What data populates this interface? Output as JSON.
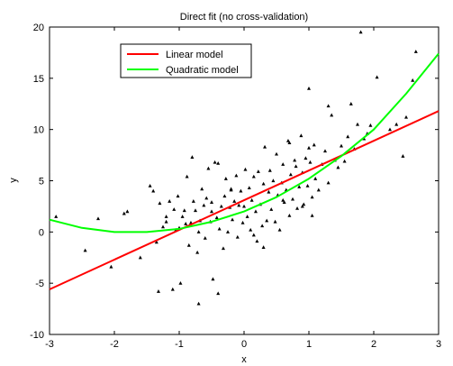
{
  "chart_data": {
    "type": "scatter",
    "title": "Direct fit (no cross-validation)",
    "xlabel": "x",
    "ylabel": "y",
    "xlim": [
      -3,
      3
    ],
    "ylim": [
      -10,
      20
    ],
    "x_ticks": [
      -3,
      -2,
      -1,
      0,
      1,
      2,
      3
    ],
    "y_ticks": [
      -10,
      -5,
      0,
      5,
      10,
      15,
      20
    ],
    "x_tick_labels": [
      "-3",
      "-2",
      "-1",
      "0",
      "1",
      "2",
      "3"
    ],
    "y_tick_labels": [
      "-10",
      "-5",
      "0",
      "5",
      "10",
      "15",
      "20"
    ],
    "grid": false,
    "legend_position": "top-left",
    "legend": [
      {
        "label": "Linear model",
        "color": "#ff0000"
      },
      {
        "label": "Quadratic model",
        "color": "#00ff00"
      }
    ],
    "lines": [
      {
        "name": "Linear model",
        "color": "#ff0000",
        "x": [
          -3,
          3
        ],
        "y": [
          -5.6,
          11.8
        ]
      },
      {
        "name": "Quadratic model",
        "color": "#00ff00",
        "x": [
          -3,
          -2.5,
          -2,
          -1.5,
          -1,
          -0.5,
          0,
          0.5,
          1,
          1.5,
          2,
          2.5,
          3
        ],
        "y": [
          1.2,
          0.4,
          0.0,
          0.0,
          0.3,
          1.0,
          2.0,
          3.4,
          5.2,
          7.4,
          10.0,
          13.5,
          17.4
        ]
      }
    ],
    "points": {
      "color": "#000000",
      "x": [
        -2.9,
        -2.45,
        -2.25,
        -2.05,
        -1.85,
        -1.8,
        -1.6,
        -1.45,
        -1.4,
        -1.35,
        -1.32,
        -1.3,
        -1.25,
        -1.2,
        -1.15,
        -1.1,
        -1.08,
        -1.05,
        -1.02,
        -1.0,
        -0.98,
        -0.95,
        -0.92,
        -0.9,
        -0.88,
        -0.85,
        -0.82,
        -0.8,
        -0.78,
        -0.75,
        -0.72,
        -0.7,
        -0.68,
        -0.65,
        -0.62,
        -0.6,
        -0.58,
        -0.55,
        -0.52,
        -0.5,
        -0.48,
        -0.45,
        -0.42,
        -0.4,
        -0.38,
        -0.35,
        -0.32,
        -0.3,
        -0.28,
        -0.25,
        -0.22,
        -0.2,
        -0.18,
        -0.15,
        -0.12,
        -0.1,
        -0.08,
        -0.05,
        -0.02,
        0.0,
        0.02,
        0.05,
        0.08,
        0.1,
        0.12,
        0.15,
        0.18,
        0.2,
        0.22,
        0.25,
        0.28,
        0.3,
        0.32,
        0.35,
        0.38,
        0.4,
        0.42,
        0.45,
        0.48,
        0.5,
        0.52,
        0.55,
        0.58,
        0.6,
        0.62,
        0.65,
        0.68,
        0.7,
        0.72,
        0.75,
        0.78,
        0.8,
        0.82,
        0.85,
        0.88,
        0.9,
        0.92,
        0.95,
        0.98,
        1.0,
        1.02,
        1.05,
        1.08,
        1.1,
        1.15,
        1.2,
        1.25,
        1.3,
        1.35,
        1.4,
        1.45,
        1.5,
        1.55,
        1.6,
        1.65,
        1.7,
        1.75,
        1.8,
        1.85,
        1.9,
        1.95,
        2.05,
        2.25,
        2.35,
        2.45,
        2.5,
        2.6,
        2.65,
        -0.7,
        -0.4,
        -0.2,
        0.3,
        0.6,
        0.9,
        1.0,
        1.3,
        -1.2,
        -0.5,
        0.15,
        0.7,
        1.05
      ],
      "y": [
        1.5,
        -1.8,
        1.3,
        -3.4,
        1.8,
        2.0,
        -2.5,
        4.5,
        4.0,
        -1.0,
        -5.8,
        2.8,
        0.5,
        1.5,
        3.0,
        -5.6,
        2.2,
        0.2,
        3.5,
        0.4,
        -5.0,
        1.5,
        2.1,
        0.8,
        5.4,
        -1.3,
        0.9,
        7.3,
        3.0,
        2.1,
        -2.0,
        0.0,
        1.1,
        4.2,
        2.6,
        -0.6,
        3.3,
        6.2,
        1.0,
        2.0,
        -4.6,
        6.8,
        1.4,
        -6.0,
        0.3,
        2.5,
        -1.6,
        3.5,
        5.2,
        0.0,
        2.4,
        4.1,
        1.2,
        3.0,
        5.5,
        -0.5,
        2.6,
        4.0,
        0.9,
        2.5,
        6.1,
        1.5,
        4.3,
        0.2,
        3.1,
        5.4,
        2.0,
        -0.9,
        5.9,
        2.7,
        0.6,
        4.7,
        8.3,
        1.1,
        3.9,
        6.0,
        2.2,
        5.0,
        1.0,
        7.6,
        3.6,
        0.2,
        4.8,
        6.6,
        2.9,
        4.1,
        8.9,
        1.6,
        5.6,
        3.2,
        7.0,
        6.4,
        2.3,
        4.4,
        9.4,
        5.8,
        2.7,
        7.2,
        4.5,
        8.2,
        6.8,
        3.4,
        8.5,
        5.2,
        4.1,
        6.6,
        7.9,
        4.8,
        11.4,
        7.0,
        6.3,
        8.4,
        6.9,
        9.3,
        12.5,
        8.1,
        10.5,
        19.5,
        9.1,
        9.6,
        10.4,
        15.1,
        10.0,
        10.5,
        7.4,
        11.2,
        14.8,
        17.6,
        -7.0,
        6.7,
        4.2,
        -1.5,
        3.1,
        2.5,
        14.0,
        12.3,
        1.0,
        2.9,
        -0.3,
        8.7,
        1.6
      ]
    }
  }
}
